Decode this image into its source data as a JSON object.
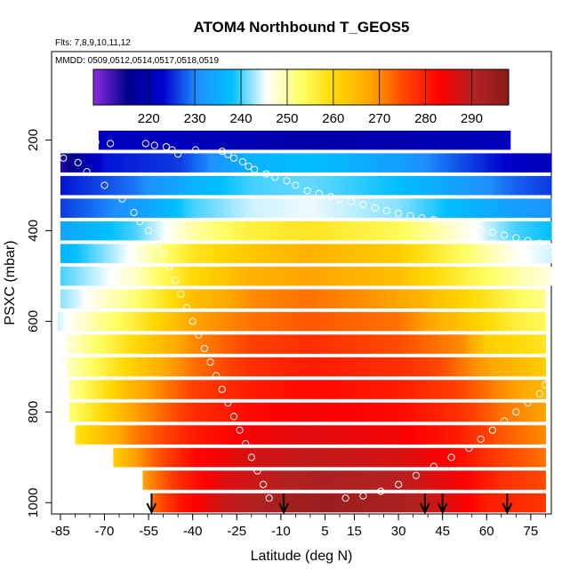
{
  "chart_data": {
    "type": "heatmap",
    "title": "ATOM4 Northbound T_GEOS5",
    "flights_note": "Flts: 7,8,9,10,11,12",
    "dates_note": "MMDD: 0509,0512,0514,0517,0518,0519",
    "xlabel": "Latitude (deg N)",
    "ylabel": "PSXC (mbar)",
    "xlim": [
      -88,
      82
    ],
    "ylim": [
      1025,
      5
    ],
    "xticks": [
      -85,
      -70,
      -55,
      -40,
      -25,
      -10,
      5,
      15,
      30,
      45,
      60,
      75
    ],
    "yticks": [
      200,
      400,
      600,
      800,
      1000
    ],
    "colorbar": {
      "range": [
        208,
        298
      ],
      "ticks": [
        220,
        230,
        240,
        250,
        260,
        270,
        280,
        290
      ],
      "colors": [
        "#8a2be2",
        "#00008b",
        "#0000cd",
        "#1e90ff",
        "#00bfff",
        "#ffffff",
        "#ffff66",
        "#ffd700",
        "#ffa500",
        "#ff4500",
        "#ff0000",
        "#b22222",
        "#8b1a1a"
      ]
    },
    "layers": [
      {
        "pressure": 200,
        "lat_min": -72,
        "lat_max": 68,
        "profile": [
          [
            -72,
            222
          ],
          [
            -40,
            221
          ],
          [
            0,
            219
          ],
          [
            40,
            220
          ],
          [
            68,
            221
          ]
        ]
      },
      {
        "pressure": 250,
        "lat_min": -85,
        "lat_max": 82,
        "profile": [
          [
            -85,
            213
          ],
          [
            -70,
            224
          ],
          [
            -45,
            226
          ],
          [
            -20,
            236
          ],
          [
            0,
            238
          ],
          [
            30,
            233
          ],
          [
            55,
            226
          ],
          [
            70,
            222
          ],
          [
            82,
            221
          ]
        ]
      },
      {
        "pressure": 300,
        "lat_min": -85,
        "lat_max": 82,
        "profile": [
          [
            -85,
            224
          ],
          [
            -60,
            229
          ],
          [
            -40,
            236
          ],
          [
            -20,
            240
          ],
          [
            0,
            241
          ],
          [
            30,
            238
          ],
          [
            55,
            232
          ],
          [
            70,
            228
          ],
          [
            82,
            226
          ]
        ]
      },
      {
        "pressure": 350,
        "lat_min": -85,
        "lat_max": 82,
        "profile": [
          [
            -85,
            226
          ],
          [
            -60,
            232
          ],
          [
            -40,
            240
          ],
          [
            -20,
            244
          ],
          [
            0,
            245
          ],
          [
            30,
            242
          ],
          [
            55,
            236
          ],
          [
            70,
            233
          ],
          [
            82,
            231
          ]
        ]
      },
      {
        "pressure": 400,
        "lat_min": -85,
        "lat_max": 82,
        "profile": [
          [
            -85,
            234
          ],
          [
            -60,
            240
          ],
          [
            -40,
            250
          ],
          [
            -20,
            256
          ],
          [
            0,
            258
          ],
          [
            30,
            254
          ],
          [
            55,
            246
          ],
          [
            70,
            240
          ],
          [
            82,
            238
          ]
        ]
      },
      {
        "pressure": 450,
        "lat_min": -85,
        "lat_max": 82,
        "profile": [
          [
            -85,
            236
          ],
          [
            -60,
            246
          ],
          [
            -40,
            258
          ],
          [
            -20,
            263
          ],
          [
            0,
            266
          ],
          [
            30,
            262
          ],
          [
            55,
            252
          ],
          [
            70,
            246
          ],
          [
            82,
            244
          ]
        ]
      },
      {
        "pressure": 500,
        "lat_min": -85,
        "lat_max": 82,
        "profile": [
          [
            -85,
            240
          ],
          [
            -60,
            248
          ],
          [
            -40,
            260
          ],
          [
            -20,
            266
          ],
          [
            0,
            268
          ],
          [
            30,
            264
          ],
          [
            55,
            255
          ],
          [
            70,
            250
          ],
          [
            82,
            247
          ]
        ]
      },
      {
        "pressure": 550,
        "lat_min": -85,
        "lat_max": 80,
        "profile": [
          [
            -85,
            242
          ],
          [
            -60,
            252
          ],
          [
            -40,
            264
          ],
          [
            -20,
            270
          ],
          [
            0,
            272
          ],
          [
            30,
            268
          ],
          [
            55,
            260
          ],
          [
            70,
            254
          ],
          [
            80,
            251
          ]
        ]
      },
      {
        "pressure": 600,
        "lat_min": -86,
        "lat_max": 80,
        "profile": [
          [
            -86,
            244
          ],
          [
            -60,
            256
          ],
          [
            -40,
            268
          ],
          [
            -20,
            272
          ],
          [
            0,
            274
          ],
          [
            30,
            272
          ],
          [
            55,
            262
          ],
          [
            70,
            256
          ],
          [
            80,
            254
          ]
        ]
      },
      {
        "pressure": 650,
        "lat_min": -83,
        "lat_max": 80,
        "profile": [
          [
            -83,
            247
          ],
          [
            -60,
            260
          ],
          [
            -40,
            270
          ],
          [
            -20,
            276
          ],
          [
            0,
            278
          ],
          [
            30,
            275
          ],
          [
            52,
            270
          ],
          [
            60,
            262
          ],
          [
            80,
            258
          ]
        ]
      },
      {
        "pressure": 700,
        "lat_min": -83,
        "lat_max": 80,
        "profile": [
          [
            -83,
            248
          ],
          [
            -60,
            262
          ],
          [
            -40,
            272
          ],
          [
            -20,
            278
          ],
          [
            0,
            280
          ],
          [
            30,
            278
          ],
          [
            45,
            275
          ],
          [
            55,
            270
          ],
          [
            80,
            262
          ]
        ]
      },
      {
        "pressure": 750,
        "lat_min": -82,
        "lat_max": 80,
        "profile": [
          [
            -82,
            250
          ],
          [
            -60,
            266
          ],
          [
            -40,
            276
          ],
          [
            -20,
            280
          ],
          [
            0,
            282
          ],
          [
            30,
            280
          ],
          [
            50,
            276
          ],
          [
            65,
            270
          ],
          [
            80,
            265
          ]
        ]
      },
      {
        "pressure": 800,
        "lat_min": -82,
        "lat_max": 80,
        "profile": [
          [
            -82,
            252
          ],
          [
            -60,
            268
          ],
          [
            -40,
            278
          ],
          [
            -20,
            282
          ],
          [
            0,
            284
          ],
          [
            30,
            282
          ],
          [
            50,
            278
          ],
          [
            65,
            272
          ],
          [
            80,
            268
          ]
        ]
      },
      {
        "pressure": 850,
        "lat_min": -80,
        "lat_max": 80,
        "profile": [
          [
            -80,
            258
          ],
          [
            -60,
            271
          ],
          [
            -40,
            280
          ],
          [
            -20,
            284
          ],
          [
            0,
            286
          ],
          [
            30,
            284
          ],
          [
            50,
            280
          ],
          [
            65,
            274
          ],
          [
            80,
            270
          ]
        ]
      },
      {
        "pressure": 900,
        "lat_min": -67,
        "lat_max": 80,
        "profile": [
          [
            -67,
            262
          ],
          [
            -55,
            272
          ],
          [
            -40,
            282
          ],
          [
            -20,
            287
          ],
          [
            0,
            289
          ],
          [
            30,
            287
          ],
          [
            50,
            282
          ],
          [
            65,
            276
          ],
          [
            80,
            272
          ]
        ]
      },
      {
        "pressure": 950,
        "lat_min": -57,
        "lat_max": 80,
        "profile": [
          [
            -57,
            268
          ],
          [
            -45,
            278
          ],
          [
            -30,
            286
          ],
          [
            -10,
            290
          ],
          [
            5,
            292
          ],
          [
            30,
            290
          ],
          [
            50,
            284
          ],
          [
            65,
            278
          ],
          [
            80,
            275
          ]
        ]
      },
      {
        "pressure": 1000,
        "lat_min": -54,
        "lat_max": 80,
        "profile": [
          [
            -54,
            272
          ],
          [
            -45,
            280
          ],
          [
            -30,
            288
          ],
          [
            -10,
            293
          ],
          [
            5,
            295
          ],
          [
            30,
            292
          ],
          [
            45,
            287
          ],
          [
            60,
            280
          ],
          [
            80,
            277
          ]
        ]
      }
    ],
    "markers": [
      [
        -86,
        210
      ],
      [
        -73,
        205
      ],
      [
        -68,
        208
      ],
      [
        -56,
        208
      ],
      [
        -53,
        212
      ],
      [
        -49,
        215
      ],
      [
        -47,
        222
      ],
      [
        -45,
        231
      ],
      [
        -39,
        222
      ],
      [
        -30,
        225
      ],
      [
        -28,
        232
      ],
      [
        -26,
        240
      ],
      [
        -23,
        248
      ],
      [
        -21,
        258
      ],
      [
        -19,
        265
      ],
      [
        -15,
        275
      ],
      [
        -12,
        282
      ],
      [
        -8,
        290
      ],
      [
        -5,
        300
      ],
      [
        -1,
        312
      ],
      [
        3,
        318
      ],
      [
        7,
        325
      ],
      [
        10,
        330
      ],
      [
        14,
        336
      ],
      [
        18,
        342
      ],
      [
        22,
        350
      ],
      [
        26,
        356
      ],
      [
        30,
        362
      ],
      [
        34,
        367
      ],
      [
        38,
        372
      ],
      [
        42,
        376
      ],
      [
        46,
        380
      ],
      [
        50,
        386
      ],
      [
        54,
        392
      ],
      [
        58,
        398
      ],
      [
        62,
        404
      ],
      [
        66,
        410
      ],
      [
        70,
        416
      ],
      [
        74,
        422
      ],
      [
        78,
        428
      ],
      [
        81,
        432
      ],
      [
        -84,
        240
      ],
      [
        -79,
        250
      ],
      [
        -76,
        270
      ],
      [
        -70,
        300
      ],
      [
        -64,
        330
      ],
      [
        -60,
        360
      ],
      [
        -58,
        380
      ],
      [
        -55,
        400
      ],
      [
        -52,
        430
      ],
      [
        -50,
        450
      ],
      [
        -48,
        480
      ],
      [
        -46,
        510
      ],
      [
        -44,
        540
      ],
      [
        -42,
        570
      ],
      [
        -40,
        600
      ],
      [
        -38,
        630
      ],
      [
        -36,
        660
      ],
      [
        -34,
        690
      ],
      [
        -32,
        720
      ],
      [
        -30,
        750
      ],
      [
        -28,
        780
      ],
      [
        -26,
        810
      ],
      [
        -24,
        840
      ],
      [
        -22,
        870
      ],
      [
        -20,
        900
      ],
      [
        -18,
        930
      ],
      [
        -16,
        960
      ],
      [
        -14,
        990
      ],
      [
        12,
        990
      ],
      [
        18,
        985
      ],
      [
        24,
        975
      ],
      [
        30,
        960
      ],
      [
        36,
        940
      ],
      [
        42,
        920
      ],
      [
        48,
        900
      ],
      [
        54,
        880
      ],
      [
        58,
        860
      ],
      [
        62,
        840
      ],
      [
        66,
        820
      ],
      [
        70,
        800
      ],
      [
        74,
        780
      ],
      [
        78,
        760
      ],
      [
        80,
        740
      ]
    ],
    "arrows_lat": [
      -54,
      -9,
      39,
      45,
      67
    ]
  }
}
